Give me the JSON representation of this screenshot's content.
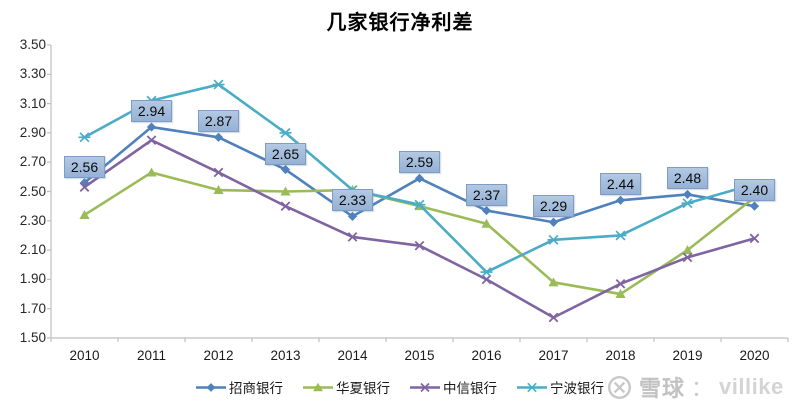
{
  "title": "几家银行净利差",
  "watermark": {
    "brand": "雪球",
    "separator": "：",
    "username": "villike"
  },
  "colors": {
    "axis": "#bfbfbf",
    "tick_text": "#262626",
    "label_box_fill": "#9fbbdc",
    "label_box_border": "#7f9cc4"
  },
  "chart_data": {
    "type": "line",
    "title": "几家银行净利差",
    "xlabel": "",
    "ylabel": "",
    "grid": false,
    "legend_position": "bottom",
    "ylim": [
      1.5,
      3.5
    ],
    "y_ticks": [
      "3.50",
      "3.30",
      "3.10",
      "2.90",
      "2.70",
      "2.50",
      "2.30",
      "2.10",
      "1.90",
      "1.70",
      "1.50"
    ],
    "categories": [
      "2010",
      "2011",
      "2012",
      "2013",
      "2014",
      "2015",
      "2016",
      "2017",
      "2018",
      "2019",
      "2020"
    ],
    "series": [
      {
        "name": "招商银行",
        "color": "#4F81BD",
        "marker": "diamond",
        "data_labels": true,
        "values": [
          2.56,
          2.94,
          2.87,
          2.65,
          2.33,
          2.59,
          2.37,
          2.29,
          2.44,
          2.48,
          2.4
        ]
      },
      {
        "name": "华夏银行",
        "color": "#9BBB59",
        "marker": "triangle",
        "data_labels": false,
        "values": [
          2.34,
          2.63,
          2.51,
          2.5,
          2.51,
          2.4,
          2.28,
          1.88,
          1.8,
          2.1,
          2.46
        ]
      },
      {
        "name": "中信银行",
        "color": "#8064A2",
        "marker": "x",
        "data_labels": false,
        "values": [
          2.53,
          2.85,
          2.63,
          2.4,
          2.19,
          2.13,
          1.9,
          1.64,
          1.87,
          2.05,
          2.18
        ]
      },
      {
        "name": "宁波银行",
        "color": "#4BACC6",
        "marker": "star",
        "data_labels": false,
        "values": [
          2.87,
          3.12,
          3.23,
          2.9,
          2.51,
          2.41,
          1.95,
          2.17,
          2.2,
          2.42,
          2.55
        ]
      }
    ]
  }
}
